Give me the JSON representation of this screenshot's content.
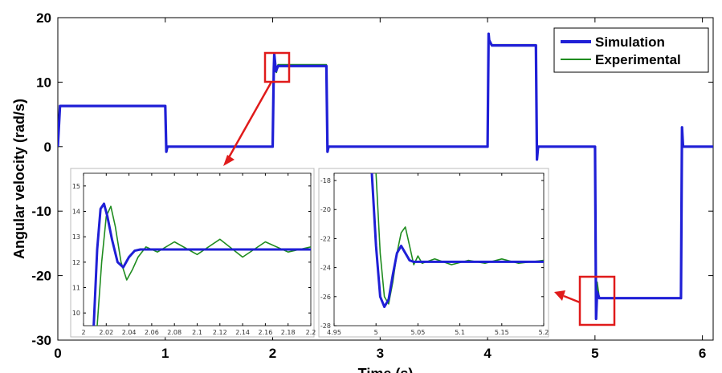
{
  "colors": {
    "simulation": "#1f1fd6",
    "experimental": "#1f8c1f",
    "highlight": "#e01b1b"
  },
  "chart_data": [
    {
      "type": "line",
      "xlabel": "Time (s)",
      "ylabel": "Angular velocity (rad/s)",
      "xlim": [
        0,
        6.1
      ],
      "ylim": [
        -30,
        20
      ],
      "xticks": [
        "0",
        "1",
        "2",
        "3",
        "4",
        "5",
        "6"
      ],
      "yticks": [
        "20",
        "10",
        "0",
        "-10",
        "-20",
        "-30"
      ],
      "grid": false,
      "legend_position": "top-right",
      "series": [
        {
          "name": "Simulation",
          "x": [
            0,
            0.02,
            1.0,
            1.01,
            1.02,
            2.0,
            2.01,
            2.015,
            2.03,
            2.05,
            2.5,
            2.51,
            2.52,
            4.0,
            4.01,
            4.015,
            4.04,
            4.45,
            4.46,
            4.47,
            5.0,
            5.01,
            5.02,
            5.04,
            5.8,
            5.81,
            5.82,
            5.85,
            6.1
          ],
          "y": [
            0,
            6.3,
            6.3,
            -0.8,
            0,
            0,
            12,
            14.3,
            11.7,
            12.5,
            12.5,
            -0.8,
            0,
            0,
            17.5,
            16.5,
            15.7,
            15.7,
            -2,
            0,
            0,
            -26.7,
            -22.5,
            -23.5,
            -23.5,
            3,
            0,
            0,
            0
          ]
        },
        {
          "name": "Experimental",
          "x": [
            0,
            0.02,
            1.0,
            1.01,
            1.02,
            2.0,
            2.01,
            2.02,
            2.035,
            2.05,
            2.5,
            2.51,
            2.52,
            4.0,
            4.01,
            4.015,
            4.04,
            4.45,
            4.46,
            4.47,
            5.0,
            5.01,
            5.02,
            5.04,
            5.8,
            5.81,
            5.82,
            5.85,
            6.1
          ],
          "y": [
            0,
            6.3,
            6.3,
            -0.8,
            0,
            0,
            11.5,
            14,
            11.5,
            12.7,
            12.7,
            -0.8,
            0,
            0,
            17,
            16.2,
            15.8,
            15.8,
            -2,
            0,
            0,
            -26,
            -21,
            -23.5,
            -23.5,
            2,
            0,
            0,
            0
          ]
        }
      ]
    },
    {
      "type": "line",
      "xlim": [
        2,
        2.2
      ],
      "ylim": [
        9.5,
        15.5
      ],
      "xticks": [
        "2",
        "2.02",
        "2.04",
        "2.06",
        "2.08",
        "2.1",
        "2.12",
        "2.14",
        "2.16",
        "2.18",
        "2.2"
      ],
      "yticks": [
        "15",
        "14",
        "13",
        "12",
        "11",
        "10"
      ],
      "series": [
        {
          "name": "Simulation",
          "x": [
            2.009,
            2.012,
            2.015,
            2.018,
            2.021,
            2.025,
            2.03,
            2.035,
            2.04,
            2.045,
            2.05,
            2.06,
            2.2
          ],
          "y": [
            9.5,
            12.5,
            14.1,
            14.3,
            13.8,
            12.9,
            12.0,
            11.8,
            12.2,
            12.45,
            12.5,
            12.5,
            12.5
          ]
        },
        {
          "name": "Experimental",
          "x": [
            2.012,
            2.016,
            2.02,
            2.024,
            2.028,
            2.033,
            2.038,
            2.043,
            2.048,
            2.055,
            2.065,
            2.08,
            2.1,
            2.12,
            2.14,
            2.16,
            2.18,
            2.2
          ],
          "y": [
            9.5,
            12.0,
            13.8,
            14.2,
            13.4,
            12.0,
            11.3,
            11.7,
            12.2,
            12.6,
            12.4,
            12.8,
            12.3,
            12.9,
            12.2,
            12.8,
            12.4,
            12.6
          ]
        }
      ]
    },
    {
      "type": "line",
      "xlim": [
        4.95,
        5.2
      ],
      "ylim": [
        -28,
        -17.5
      ],
      "xticks": [
        "4.95",
        "5",
        "5.05",
        "5.1",
        "5.15",
        "5.2"
      ],
      "yticks": [
        "-18",
        "-20",
        "-22",
        "-24",
        "-26",
        "-28"
      ],
      "series": [
        {
          "name": "Simulation",
          "x": [
            4.995,
            5.0,
            5.005,
            5.01,
            5.015,
            5.02,
            5.025,
            5.03,
            5.035,
            5.04,
            5.045,
            5.06,
            5.2
          ],
          "y": [
            -17.5,
            -22.5,
            -26.0,
            -26.7,
            -26.2,
            -24.5,
            -23.0,
            -22.5,
            -23.0,
            -23.5,
            -23.6,
            -23.6,
            -23.6
          ]
        },
        {
          "name": "Experimental",
          "x": [
            5.0,
            5.005,
            5.01,
            5.015,
            5.02,
            5.025,
            5.03,
            5.035,
            5.04,
            5.045,
            5.05,
            5.055,
            5.07,
            5.09,
            5.11,
            5.13,
            5.15,
            5.17,
            5.2
          ],
          "y": [
            -17.5,
            -23.0,
            -26.0,
            -26.5,
            -25.0,
            -23.0,
            -21.6,
            -21.2,
            -22.5,
            -23.8,
            -23.2,
            -23.7,
            -23.4,
            -23.8,
            -23.5,
            -23.7,
            -23.4,
            -23.7,
            -23.5
          ]
        }
      ]
    }
  ]
}
